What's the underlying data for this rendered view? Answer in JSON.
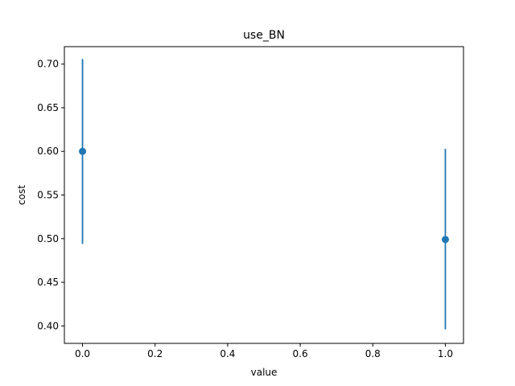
{
  "chart_data": {
    "type": "scatter",
    "title": "use_BN",
    "xlabel": "value",
    "ylabel": "cost",
    "xlim": [
      -0.05,
      1.05
    ],
    "ylim": [
      0.38,
      0.72
    ],
    "xticks": [
      "0.0",
      "0.2",
      "0.4",
      "0.6",
      "0.8",
      "1.0"
    ],
    "yticks": [
      "0.40",
      "0.45",
      "0.50",
      "0.55",
      "0.60",
      "0.65",
      "0.70"
    ],
    "grid": false,
    "series": [
      {
        "color": "#1f77b4",
        "points": [
          {
            "x": 0.0,
            "y": 0.6,
            "err_low": 0.494,
            "err_high": 0.706
          },
          {
            "x": 1.0,
            "y": 0.499,
            "err_low": 0.396,
            "err_high": 0.603
          }
        ]
      }
    ]
  }
}
